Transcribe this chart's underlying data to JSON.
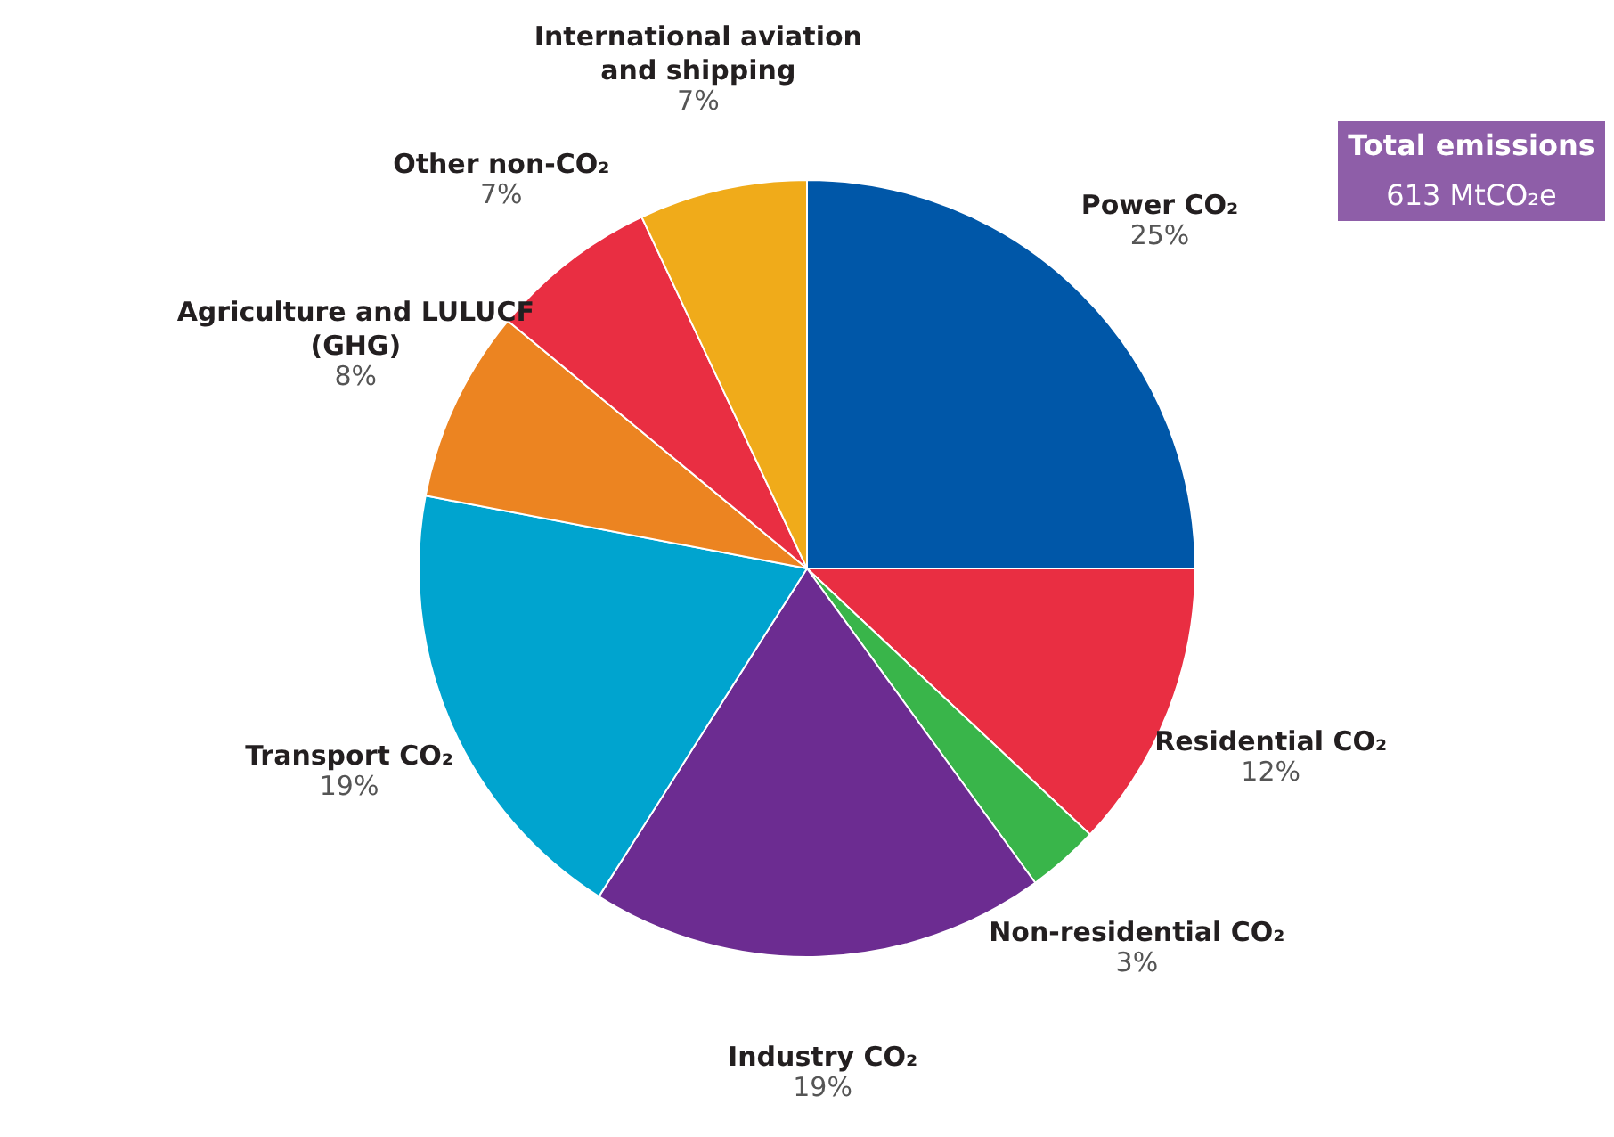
{
  "chart_data": {
    "type": "pie",
    "categories": [
      "Power CO₂",
      "Residential CO₂",
      "Non-residential CO₂",
      "Industry CO₂",
      "Transport CO₂",
      "Agriculture and LULUCF (GHG)",
      "Other non-CO₂",
      "International aviation and shipping"
    ],
    "values": [
      25,
      12,
      3,
      19,
      19,
      8,
      7,
      7
    ],
    "value_labels": [
      "25%",
      "12%",
      "3%",
      "19%",
      "19%",
      "8%",
      "7%",
      "7%"
    ],
    "colors": [
      "#0057a8",
      "#e92e42",
      "#39b54a",
      "#6c2c91",
      "#00a4cf",
      "#ec8421",
      "#e92e42",
      "#f0ab1a"
    ],
    "annotations": [
      "Total emissions",
      "613 MtCO₂e"
    ],
    "legend": false
  }
}
